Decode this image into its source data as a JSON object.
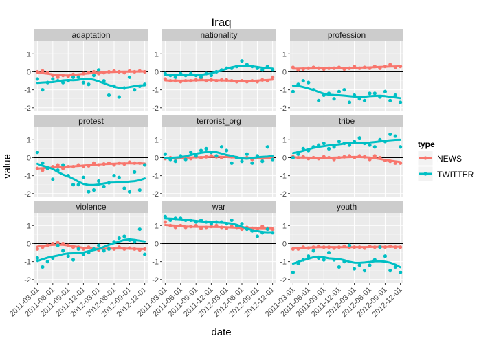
{
  "chart_data": {
    "type": "scatter",
    "title": "Iraq",
    "xlabel": "date",
    "ylabel": "value",
    "x": [
      "2011-03-01",
      "2011-04-01",
      "2011-05-01",
      "2011-06-01",
      "2011-07-01",
      "2011-08-01",
      "2011-09-01",
      "2011-10-01",
      "2011-11-01",
      "2011-12-01",
      "2012-01-01",
      "2012-02-01",
      "2012-03-01",
      "2012-04-01",
      "2012-05-01",
      "2012-06-01",
      "2012-07-01",
      "2012-08-01",
      "2012-09-01",
      "2012-10-01",
      "2012-11-01",
      "2012-12-01"
    ],
    "x_ticks": [
      "2011-03-01",
      "2011-06-01",
      "2011-09-01",
      "2011-12-01",
      "2012-03-01",
      "2012-06-01",
      "2012-09-01",
      "2012-12-01"
    ],
    "ylim": [
      -2.2,
      1.7
    ],
    "y_ticks": [
      -2,
      -1,
      0,
      1
    ],
    "reference_line_y": 0,
    "legend": {
      "title": "type",
      "position": "right",
      "entries": [
        {
          "label": "NEWS",
          "color": "#F8766D"
        },
        {
          "label": "TWITTER",
          "color": "#00BFC4"
        }
      ]
    },
    "colors": {
      "NEWS": "#F8766D",
      "TWITTER": "#00BFC4",
      "panel_bg": "#EBEBEB",
      "strip_bg": "#CCCCCC",
      "grid": "#FFFFFF"
    },
    "panels": [
      {
        "name": "adaptation",
        "NEWS": [
          0,
          0.05,
          -0.05,
          -0.2,
          -0.3,
          -0.2,
          -0.25,
          -0.15,
          -0.2,
          -0.1,
          -0.05,
          0,
          -0.1,
          -0.05,
          0,
          0.05,
          0,
          -0.05,
          0.05,
          0,
          0.05,
          0
        ],
        "TWITTER": [
          -0.4,
          -1.0,
          -0.6,
          -0.4,
          -0.5,
          -0.6,
          -0.5,
          -0.3,
          -0.3,
          -0.6,
          -0.7,
          -0.2,
          0.1,
          -0.5,
          -1.3,
          -0.8,
          -1.4,
          -0.9,
          -0.3,
          -1.0,
          -0.8,
          -0.7
        ]
      },
      {
        "name": "nationality",
        "NEWS": [
          -0.4,
          -0.5,
          -0.5,
          -0.55,
          -0.5,
          -0.5,
          -0.45,
          -0.4,
          -0.5,
          -0.45,
          -0.5,
          -0.45,
          -0.45,
          -0.5,
          -0.55,
          -0.5,
          -0.55,
          -0.5,
          -0.55,
          -0.45,
          -0.5,
          -0.3
        ],
        "TWITTER": [
          -0.1,
          -0.2,
          -0.3,
          -0.1,
          -0.2,
          -0.1,
          -0.2,
          -0.3,
          -0.1,
          -0.2,
          0,
          0.1,
          0.2,
          0.2,
          0.3,
          0.6,
          0.4,
          0.3,
          0.2,
          0.1,
          0.3,
          0.1
        ]
      },
      {
        "name": "profession",
        "NEWS": [
          0.25,
          0.1,
          0.15,
          0.2,
          0.25,
          0.2,
          0.15,
          0.2,
          0.2,
          0.25,
          0.15,
          0.2,
          0.3,
          0.2,
          0.25,
          0.2,
          0.3,
          0.2,
          0.3,
          0.4,
          0.25,
          0.3
        ],
        "TWITTER": [
          -1.1,
          -0.7,
          -0.5,
          -0.6,
          -1.0,
          -1.6,
          -1.3,
          -1.2,
          -1.5,
          -1.1,
          -1.0,
          -1.7,
          -1.3,
          -1.5,
          -1.6,
          -1.2,
          -1.2,
          -1.4,
          -1.1,
          -1.6,
          -1.3,
          -1.7
        ]
      },
      {
        "name": "protest",
        "NEWS": [
          -0.6,
          -0.7,
          -0.6,
          -0.5,
          -0.4,
          -0.6,
          -0.5,
          -0.5,
          -0.4,
          -0.5,
          -0.45,
          -0.3,
          -0.4,
          -0.35,
          -0.3,
          -0.4,
          -0.3,
          -0.35,
          -0.25,
          -0.3,
          -0.3,
          -0.4
        ],
        "TWITTER": [
          0.3,
          -0.3,
          -0.6,
          -1.2,
          -0.7,
          -0.4,
          -1.0,
          -1.5,
          -1.5,
          -1.1,
          -1.9,
          -1.8,
          -1.3,
          -1.6,
          -1.4,
          -1.0,
          -1.1,
          -1.7,
          -1.9,
          -0.8,
          -1.8,
          -0.4
        ]
      },
      {
        "name": "terrorist_org",
        "NEWS": [
          -0.05,
          0,
          -0.05,
          0.05,
          0,
          -0.05,
          0.05,
          0,
          0.05,
          0.1,
          0.05,
          0,
          0.1,
          0.05,
          0,
          -0.05,
          0,
          -0.1,
          0,
          -0.05,
          0,
          -0.05
        ],
        "TWITTER": [
          0.2,
          -0.1,
          -0.2,
          0.1,
          -0.1,
          0.3,
          0.1,
          0.4,
          0.5,
          0.3,
          0.1,
          0.6,
          0.4,
          -0.3,
          0,
          -0.2,
          0.2,
          -0.3,
          0.1,
          -0.2,
          0.6,
          -0.1
        ]
      },
      {
        "name": "tribe",
        "NEWS": [
          0.05,
          0,
          0.05,
          -0.05,
          0,
          -0.05,
          0.05,
          0,
          -0.1,
          0,
          0.05,
          0.1,
          0,
          0.1,
          0.05,
          -0.1,
          0.1,
          0,
          -0.15,
          -0.2,
          -0.3,
          -0.3
        ],
        "TWITTER": [
          0,
          0.2,
          0.5,
          0.4,
          0.6,
          0.7,
          0.8,
          0.5,
          0.6,
          0.9,
          0.8,
          0.7,
          0.9,
          1.1,
          0.8,
          0.7,
          0.6,
          1.0,
          0.9,
          1.3,
          1.2,
          0.6
        ]
      },
      {
        "name": "violence",
        "NEWS": [
          -0.3,
          -0.2,
          -0.1,
          0,
          0.05,
          0,
          -0.1,
          -0.2,
          -0.2,
          -0.3,
          -0.2,
          -0.3,
          -0.35,
          -0.3,
          -0.25,
          -0.3,
          -0.2,
          -0.3,
          -0.25,
          -0.3,
          -0.35,
          -0.3
        ],
        "TWITTER": [
          -0.8,
          -1.3,
          -1.0,
          -0.8,
          -0.1,
          -0.4,
          -0.7,
          -0.9,
          -0.3,
          -0.6,
          -0.5,
          -0.3,
          -0.1,
          -0.4,
          -0.3,
          0.1,
          0.3,
          0.4,
          0.2,
          0.1,
          0.8,
          -0.6
        ]
      },
      {
        "name": "war",
        "NEWS": [
          1.2,
          1.0,
          0.9,
          1.0,
          0.9,
          0.95,
          1.0,
          0.85,
          0.9,
          0.95,
          1.0,
          0.9,
          0.85,
          0.95,
          0.9,
          0.8,
          0.9,
          0.85,
          0.8,
          0.95,
          0.85,
          0.8
        ],
        "TWITTER": [
          1.5,
          1.3,
          1.4,
          1.4,
          1.3,
          1.3,
          1.2,
          1.3,
          1.2,
          1.1,
          1.2,
          1.2,
          1.1,
          1.3,
          1.0,
          1.1,
          0.8,
          0.7,
          0.4,
          0.6,
          0.8,
          0.6
        ]
      },
      {
        "name": "youth",
        "NEWS": [
          -0.3,
          -0.3,
          -0.2,
          -0.25,
          -0.2,
          -0.15,
          -0.2,
          -0.2,
          -0.25,
          -0.2,
          -0.15,
          -0.2,
          -0.2,
          -0.2,
          -0.25,
          -0.15,
          -0.2,
          -0.15,
          -0.2,
          -0.15,
          -0.2,
          -0.2
        ],
        "TWITTER": [
          -1.6,
          -1.1,
          -0.9,
          -0.7,
          -0.4,
          -0.8,
          -0.9,
          -0.5,
          -0.9,
          -1.3,
          -1.0,
          -0.1,
          -1.4,
          -1.2,
          -1.5,
          -1.2,
          -0.9,
          -0.2,
          -0.7,
          -1.5,
          -1.3,
          -1.6
        ]
      }
    ]
  }
}
